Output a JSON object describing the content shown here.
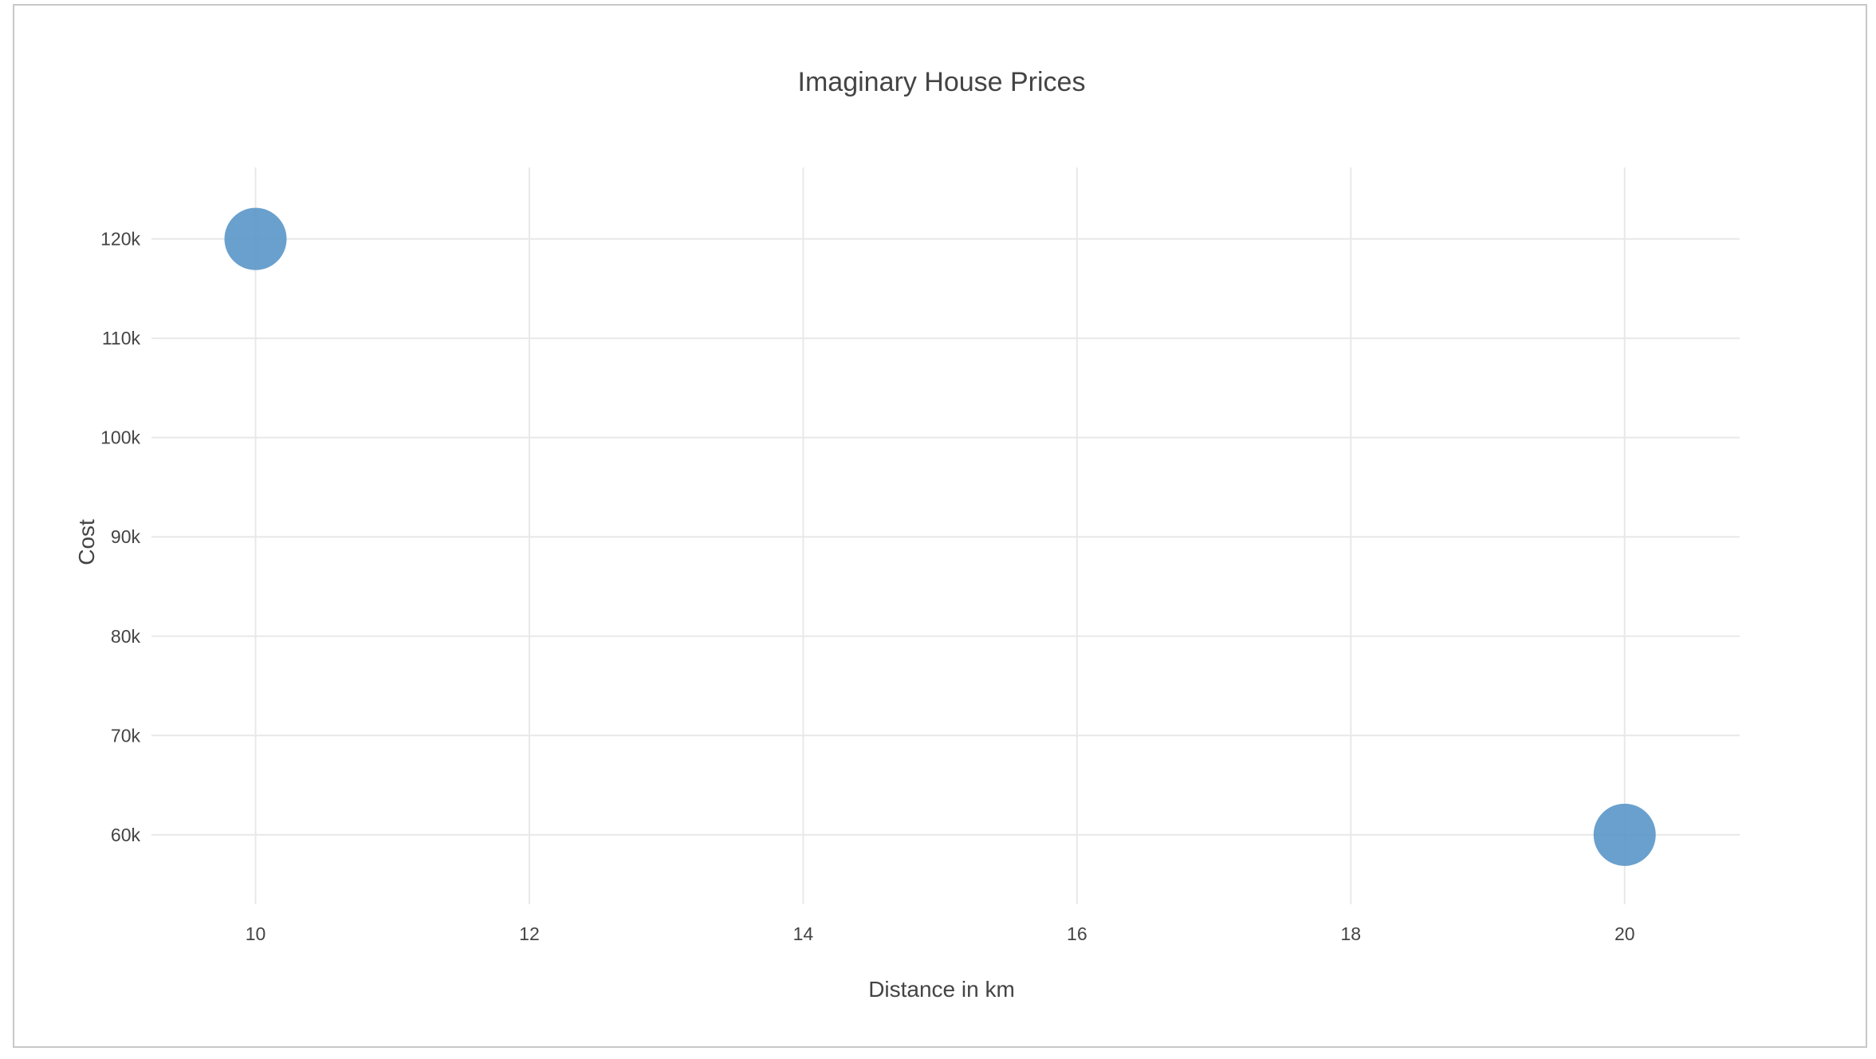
{
  "chart_data": {
    "type": "scatter",
    "title": "Imaginary House Prices",
    "xlabel": "Distance in km",
    "ylabel": "Cost",
    "x": [
      10,
      20
    ],
    "y": [
      120000,
      60000
    ],
    "x_ticks": [
      10,
      12,
      14,
      16,
      18,
      20
    ],
    "x_tick_labels": [
      "10",
      "12",
      "14",
      "16",
      "18",
      "20"
    ],
    "y_ticks": [
      60000,
      70000,
      80000,
      90000,
      100000,
      110000,
      120000
    ],
    "y_tick_labels": [
      "60k",
      "70k",
      "80k",
      "90k",
      "100k",
      "110k",
      "120k"
    ],
    "xlim": [
      9.24,
      20.84
    ],
    "ylim": [
      53000,
      127200
    ],
    "grid": true,
    "marker_color": "#5a96c8",
    "marker_opacity": 0.9
  }
}
